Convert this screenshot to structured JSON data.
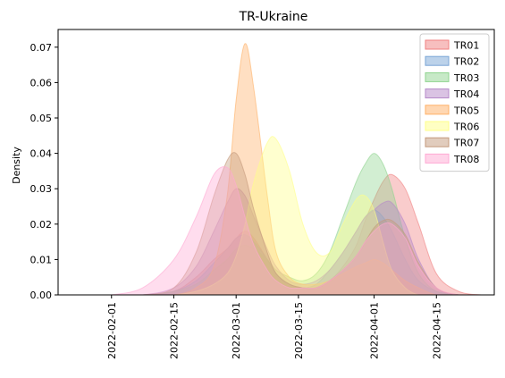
{
  "chart_data": {
    "type": "area",
    "title": "TR-Ukraine",
    "ylabel": "Density",
    "xlabel": "",
    "xlim": [
      "2022-01-20",
      "2022-04-28"
    ],
    "ylim": [
      0,
      0.075
    ],
    "x_ticks": [
      "2022-02-01",
      "2022-02-15",
      "2022-03-01",
      "2022-03-15",
      "2022-04-01",
      "2022-04-15"
    ],
    "y_ticks": [
      0.0,
      0.01,
      0.02,
      0.03,
      0.04,
      0.05,
      0.06,
      0.07
    ],
    "y_tick_labels": [
      "0.00",
      "0.01",
      "0.02",
      "0.03",
      "0.04",
      "0.05",
      "0.06",
      "0.07"
    ],
    "legend_position": "top-right",
    "grid": false,
    "x": [
      "2022-02-01",
      "2022-02-08",
      "2022-02-15",
      "2022-02-20",
      "2022-02-24",
      "2022-02-27",
      "2022-03-01",
      "2022-03-03",
      "2022-03-05",
      "2022-03-08",
      "2022-03-10",
      "2022-03-13",
      "2022-03-16",
      "2022-03-19",
      "2022-03-22",
      "2022-03-25",
      "2022-03-28",
      "2022-03-30",
      "2022-04-01",
      "2022-04-03",
      "2022-04-05",
      "2022-04-08",
      "2022-04-11",
      "2022-04-15",
      "2022-04-20",
      "2022-04-25"
    ],
    "series": [
      {
        "name": "TR01",
        "color": "#f08080",
        "values": [
          0.0,
          0.0,
          0.001,
          0.005,
          0.01,
          0.013,
          0.016,
          0.018,
          0.016,
          0.01,
          0.006,
          0.003,
          0.002,
          0.002,
          0.004,
          0.008,
          0.014,
          0.021,
          0.027,
          0.032,
          0.034,
          0.03,
          0.02,
          0.006,
          0.001,
          0.0
        ]
      },
      {
        "name": "TR02",
        "color": "#7aa6d6",
        "values": [
          0.0,
          0.0,
          0.001,
          0.004,
          0.009,
          0.013,
          0.016,
          0.017,
          0.015,
          0.01,
          0.006,
          0.003,
          0.002,
          0.003,
          0.007,
          0.012,
          0.018,
          0.022,
          0.024,
          0.022,
          0.018,
          0.01,
          0.004,
          0.001,
          0.0,
          0.0
        ]
      },
      {
        "name": "TR03",
        "color": "#8fd48f",
        "values": [
          0.0,
          0.0,
          0.001,
          0.003,
          0.007,
          0.01,
          0.013,
          0.014,
          0.013,
          0.01,
          0.007,
          0.005,
          0.004,
          0.006,
          0.012,
          0.022,
          0.032,
          0.037,
          0.04,
          0.037,
          0.03,
          0.016,
          0.006,
          0.001,
          0.0,
          0.0
        ]
      },
      {
        "name": "TR04",
        "color": "#b588c8",
        "values": [
          0.0,
          0.0,
          0.002,
          0.008,
          0.018,
          0.026,
          0.03,
          0.028,
          0.022,
          0.013,
          0.008,
          0.004,
          0.003,
          0.004,
          0.007,
          0.012,
          0.018,
          0.022,
          0.024,
          0.026,
          0.026,
          0.02,
          0.01,
          0.002,
          0.0,
          0.0
        ]
      },
      {
        "name": "TR05",
        "color": "#ffb066",
        "values": [
          0.0,
          0.0,
          0.0,
          0.002,
          0.008,
          0.028,
          0.055,
          0.071,
          0.058,
          0.028,
          0.012,
          0.005,
          0.003,
          0.003,
          0.004,
          0.006,
          0.008,
          0.009,
          0.01,
          0.009,
          0.007,
          0.004,
          0.002,
          0.0,
          0.0,
          0.0
        ]
      },
      {
        "name": "TR06",
        "color": "#ffff88",
        "values": [
          0.0,
          0.0,
          0.0,
          0.001,
          0.003,
          0.006,
          0.011,
          0.02,
          0.032,
          0.043,
          0.044,
          0.035,
          0.02,
          0.012,
          0.012,
          0.02,
          0.027,
          0.028,
          0.024,
          0.015,
          0.007,
          0.002,
          0.0,
          0.0,
          0.0,
          0.0
        ]
      },
      {
        "name": "TR07",
        "color": "#c49a7c",
        "values": [
          0.0,
          0.0,
          0.002,
          0.012,
          0.028,
          0.038,
          0.04,
          0.034,
          0.024,
          0.012,
          0.006,
          0.003,
          0.002,
          0.002,
          0.004,
          0.007,
          0.011,
          0.015,
          0.019,
          0.021,
          0.021,
          0.017,
          0.009,
          0.002,
          0.0,
          0.0
        ]
      },
      {
        "name": "TR08",
        "color": "#ffaad4",
        "values": [
          0.0,
          0.002,
          0.01,
          0.022,
          0.034,
          0.036,
          0.031,
          0.022,
          0.014,
          0.007,
          0.004,
          0.002,
          0.002,
          0.002,
          0.004,
          0.007,
          0.011,
          0.015,
          0.018,
          0.02,
          0.02,
          0.016,
          0.008,
          0.002,
          0.0,
          0.0
        ]
      }
    ]
  }
}
